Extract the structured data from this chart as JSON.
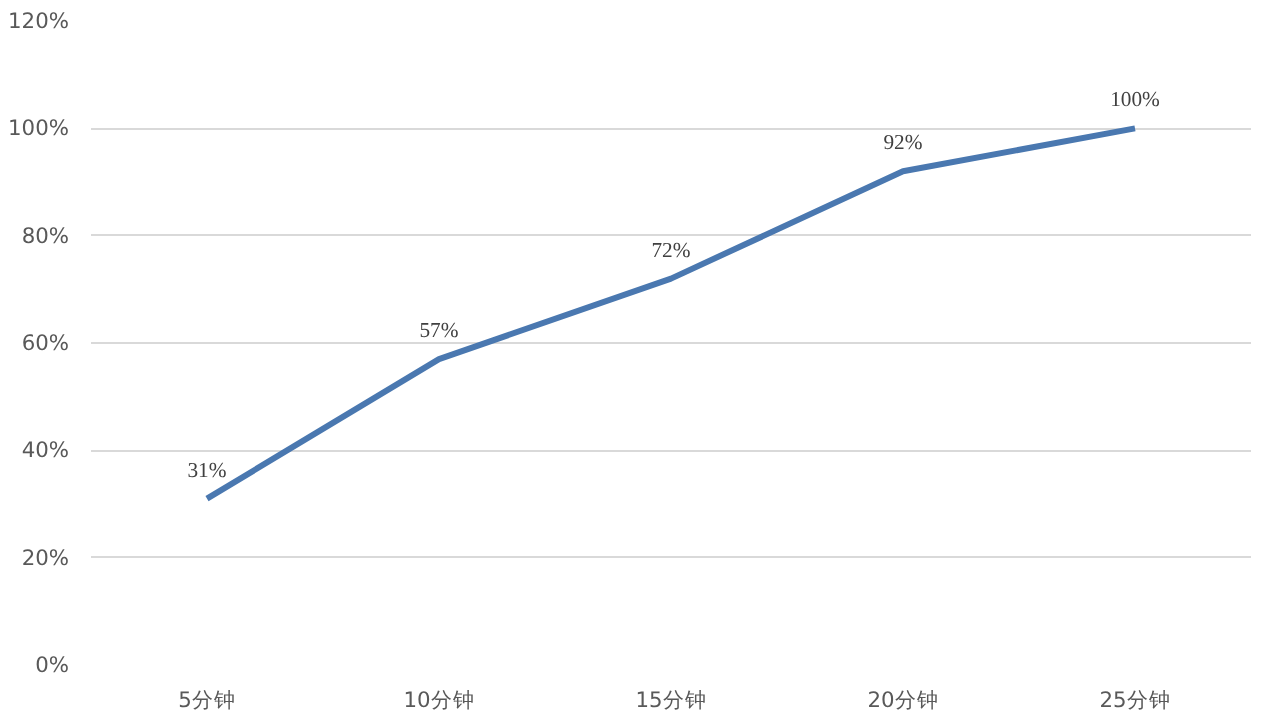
{
  "chart_data": {
    "type": "line",
    "categories": [
      "5分钟",
      "10分钟",
      "15分钟",
      "20分钟",
      "25分钟"
    ],
    "series": [
      {
        "color": "#4a78b0",
        "values": [
          31,
          57,
          72,
          92,
          100
        ],
        "value_labels": [
          "31%",
          "57%",
          "72%",
          "92%",
          "100%"
        ]
      }
    ],
    "ylim": [
      0,
      120
    ],
    "yticks": [
      {
        "value": 0,
        "label": "0%"
      },
      {
        "value": 20,
        "label": "20%"
      },
      {
        "value": 40,
        "label": "40%"
      },
      {
        "value": 60,
        "label": "60%"
      },
      {
        "value": 80,
        "label": "80%"
      },
      {
        "value": 100,
        "label": "100%"
      },
      {
        "value": 120,
        "label": "120%"
      }
    ],
    "grid": "y",
    "marker": "none",
    "line_style": "solid"
  }
}
